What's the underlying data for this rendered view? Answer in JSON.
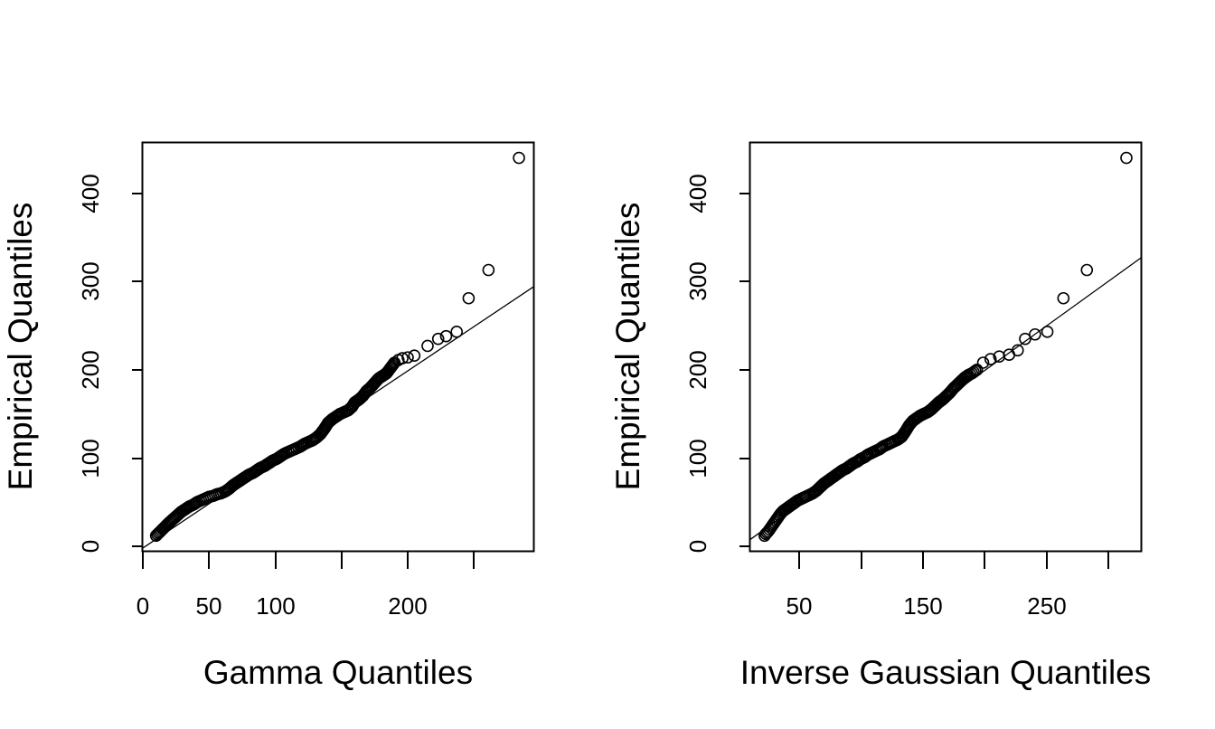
{
  "chart_data": [
    {
      "type": "scatter",
      "subtype": "qq-plot",
      "title": "",
      "xlabel": "Gamma Quantiles",
      "ylabel": "Empirical Quantiles",
      "xlim": [
        0,
        295
      ],
      "ylim": [
        -5,
        458
      ],
      "x_ticks": [
        0,
        50,
        100,
        150,
        200,
        250
      ],
      "x_tick_labels": [
        "0",
        "50",
        "100",
        "",
        "200",
        ""
      ],
      "y_ticks": [
        0,
        100,
        200,
        300,
        400
      ],
      "y_tick_labels": [
        "0",
        "100",
        "200",
        "300",
        "400"
      ],
      "grid": false,
      "legend": null,
      "reference_line": {
        "x0": 0,
        "y0": -2,
        "x1": 295,
        "y1": 294
      },
      "marker": "open-circle",
      "series": [
        {
          "name": "sample",
          "points": [
            [
              10,
              12
            ],
            [
              12,
              15
            ],
            [
              14,
              18
            ],
            [
              16,
              21
            ],
            [
              18,
              24
            ],
            [
              20,
              27
            ],
            [
              23,
              31
            ],
            [
              26,
              35
            ],
            [
              29,
              39
            ],
            [
              32,
              42
            ],
            [
              35,
              45
            ],
            [
              38,
              47
            ],
            [
              41,
              50
            ],
            [
              44,
              52
            ],
            [
              47,
              54
            ],
            [
              50,
              56
            ],
            [
              53,
              57
            ],
            [
              56,
              59
            ],
            [
              59,
              60
            ],
            [
              62,
              62
            ],
            [
              65,
              65
            ],
            [
              68,
              69
            ],
            [
              71,
              72
            ],
            [
              74,
              75
            ],
            [
              77,
              78
            ],
            [
              80,
              81
            ],
            [
              83,
              83
            ],
            [
              86,
              86
            ],
            [
              89,
              89
            ],
            [
              92,
              91
            ],
            [
              95,
              94
            ],
            [
              98,
              97
            ],
            [
              101,
              99
            ],
            [
              104,
              102
            ],
            [
              107,
              105
            ],
            [
              110,
              107
            ],
            [
              113,
              109
            ],
            [
              116,
              111
            ],
            [
              119,
              113
            ],
            [
              122,
              116
            ],
            [
              125,
              118
            ],
            [
              128,
              120
            ],
            [
              131,
              123
            ],
            [
              134,
              127
            ],
            [
              137,
              133
            ],
            [
              140,
              140
            ],
            [
              143,
              144
            ],
            [
              146,
              147
            ],
            [
              149,
              150
            ],
            [
              152,
              152
            ],
            [
              155,
              154
            ],
            [
              158,
              158
            ],
            [
              160,
              163
            ],
            [
              163,
              166
            ],
            [
              166,
              170
            ],
            [
              169,
              176
            ],
            [
              172,
              180
            ],
            [
              175,
              185
            ],
            [
              178,
              190
            ],
            [
              181,
              193
            ],
            [
              184,
              196
            ],
            [
              187,
              202
            ],
            [
              190,
              208
            ],
            [
              193,
              211
            ],
            [
              196,
              213
            ],
            [
              200,
              214
            ],
            [
              205,
              216
            ],
            [
              215,
              227
            ],
            [
              223,
              235
            ],
            [
              229,
              238
            ],
            [
              237,
              243
            ],
            [
              246,
              281
            ],
            [
              261,
              313
            ],
            [
              284,
              440
            ]
          ]
        }
      ]
    },
    {
      "type": "scatter",
      "subtype": "qq-plot",
      "title": "",
      "xlabel": "Inverse Gaussian Quantiles",
      "ylabel": "Empirical Quantiles",
      "xlim": [
        9.7,
        327
      ],
      "ylim": [
        -5,
        458
      ],
      "x_ticks": [
        50,
        100,
        150,
        200,
        250,
        300
      ],
      "x_tick_labels": [
        "50",
        "",
        "150",
        "",
        "250",
        ""
      ],
      "y_ticks": [
        0,
        100,
        200,
        300,
        400
      ],
      "y_tick_labels": [
        "0",
        "100",
        "200",
        "300",
        "400"
      ],
      "grid": false,
      "legend": null,
      "reference_line": {
        "x0": 9.7,
        "y0": 7,
        "x1": 327,
        "y1": 327
      },
      "marker": "open-circle",
      "series": [
        {
          "name": "sample",
          "points": [
            [
              22,
              12
            ],
            [
              23,
              14
            ],
            [
              25,
              17
            ],
            [
              27,
              21
            ],
            [
              29,
              25
            ],
            [
              31,
              29
            ],
            [
              33,
              33
            ],
            [
              35,
              37
            ],
            [
              37,
              40
            ],
            [
              40,
              43
            ],
            [
              43,
              46
            ],
            [
              46,
              49
            ],
            [
              49,
              52
            ],
            [
              52,
              54
            ],
            [
              55,
              56
            ],
            [
              58,
              58
            ],
            [
              61,
              60
            ],
            [
              64,
              63
            ],
            [
              67,
              67
            ],
            [
              70,
              71
            ],
            [
              73,
              74
            ],
            [
              76,
              77
            ],
            [
              79,
              80
            ],
            [
              82,
              83
            ],
            [
              85,
              86
            ],
            [
              88,
              88
            ],
            [
              91,
              91
            ],
            [
              94,
              94
            ],
            [
              97,
              96
            ],
            [
              100,
              99
            ],
            [
              103,
              101
            ],
            [
              106,
              104
            ],
            [
              109,
              106
            ],
            [
              112,
              108
            ],
            [
              115,
              110
            ],
            [
              118,
              113
            ],
            [
              121,
              115
            ],
            [
              124,
              117
            ],
            [
              127,
              119
            ],
            [
              130,
              121
            ],
            [
              133,
              124
            ],
            [
              136,
              130
            ],
            [
              139,
              137
            ],
            [
              142,
              142
            ],
            [
              145,
              145
            ],
            [
              148,
              148
            ],
            [
              151,
              150
            ],
            [
              154,
              152
            ],
            [
              157,
              155
            ],
            [
              160,
              159
            ],
            [
              163,
              163
            ],
            [
              166,
              166
            ],
            [
              169,
              170
            ],
            [
              172,
              174
            ],
            [
              175,
              179
            ],
            [
              178,
              183
            ],
            [
              181,
              187
            ],
            [
              184,
              191
            ],
            [
              187,
              194
            ],
            [
              190,
              196
            ],
            [
              194,
              200
            ],
            [
              199,
              208
            ],
            [
              205,
              212
            ],
            [
              212,
              215
            ],
            [
              220,
              217
            ],
            [
              227,
              222
            ],
            [
              233,
              235
            ],
            [
              241,
              240
            ],
            [
              251,
              243
            ],
            [
              264,
              281
            ],
            [
              283,
              313
            ],
            [
              315,
              440
            ]
          ]
        }
      ]
    }
  ],
  "panels": [
    {
      "xlabel": "Gamma Quantiles",
      "ylabel": "Empirical Quantiles",
      "x_tick_labels": [
        "0",
        "50",
        "100",
        "200"
      ],
      "y_tick_labels": [
        "0",
        "100",
        "200",
        "300",
        "400"
      ]
    },
    {
      "xlabel": "Inverse Gaussian Quantiles",
      "ylabel": "Empirical Quantiles",
      "x_tick_labels": [
        "50",
        "150",
        "250"
      ],
      "y_tick_labels": [
        "0",
        "100",
        "200",
        "300",
        "400"
      ]
    }
  ]
}
